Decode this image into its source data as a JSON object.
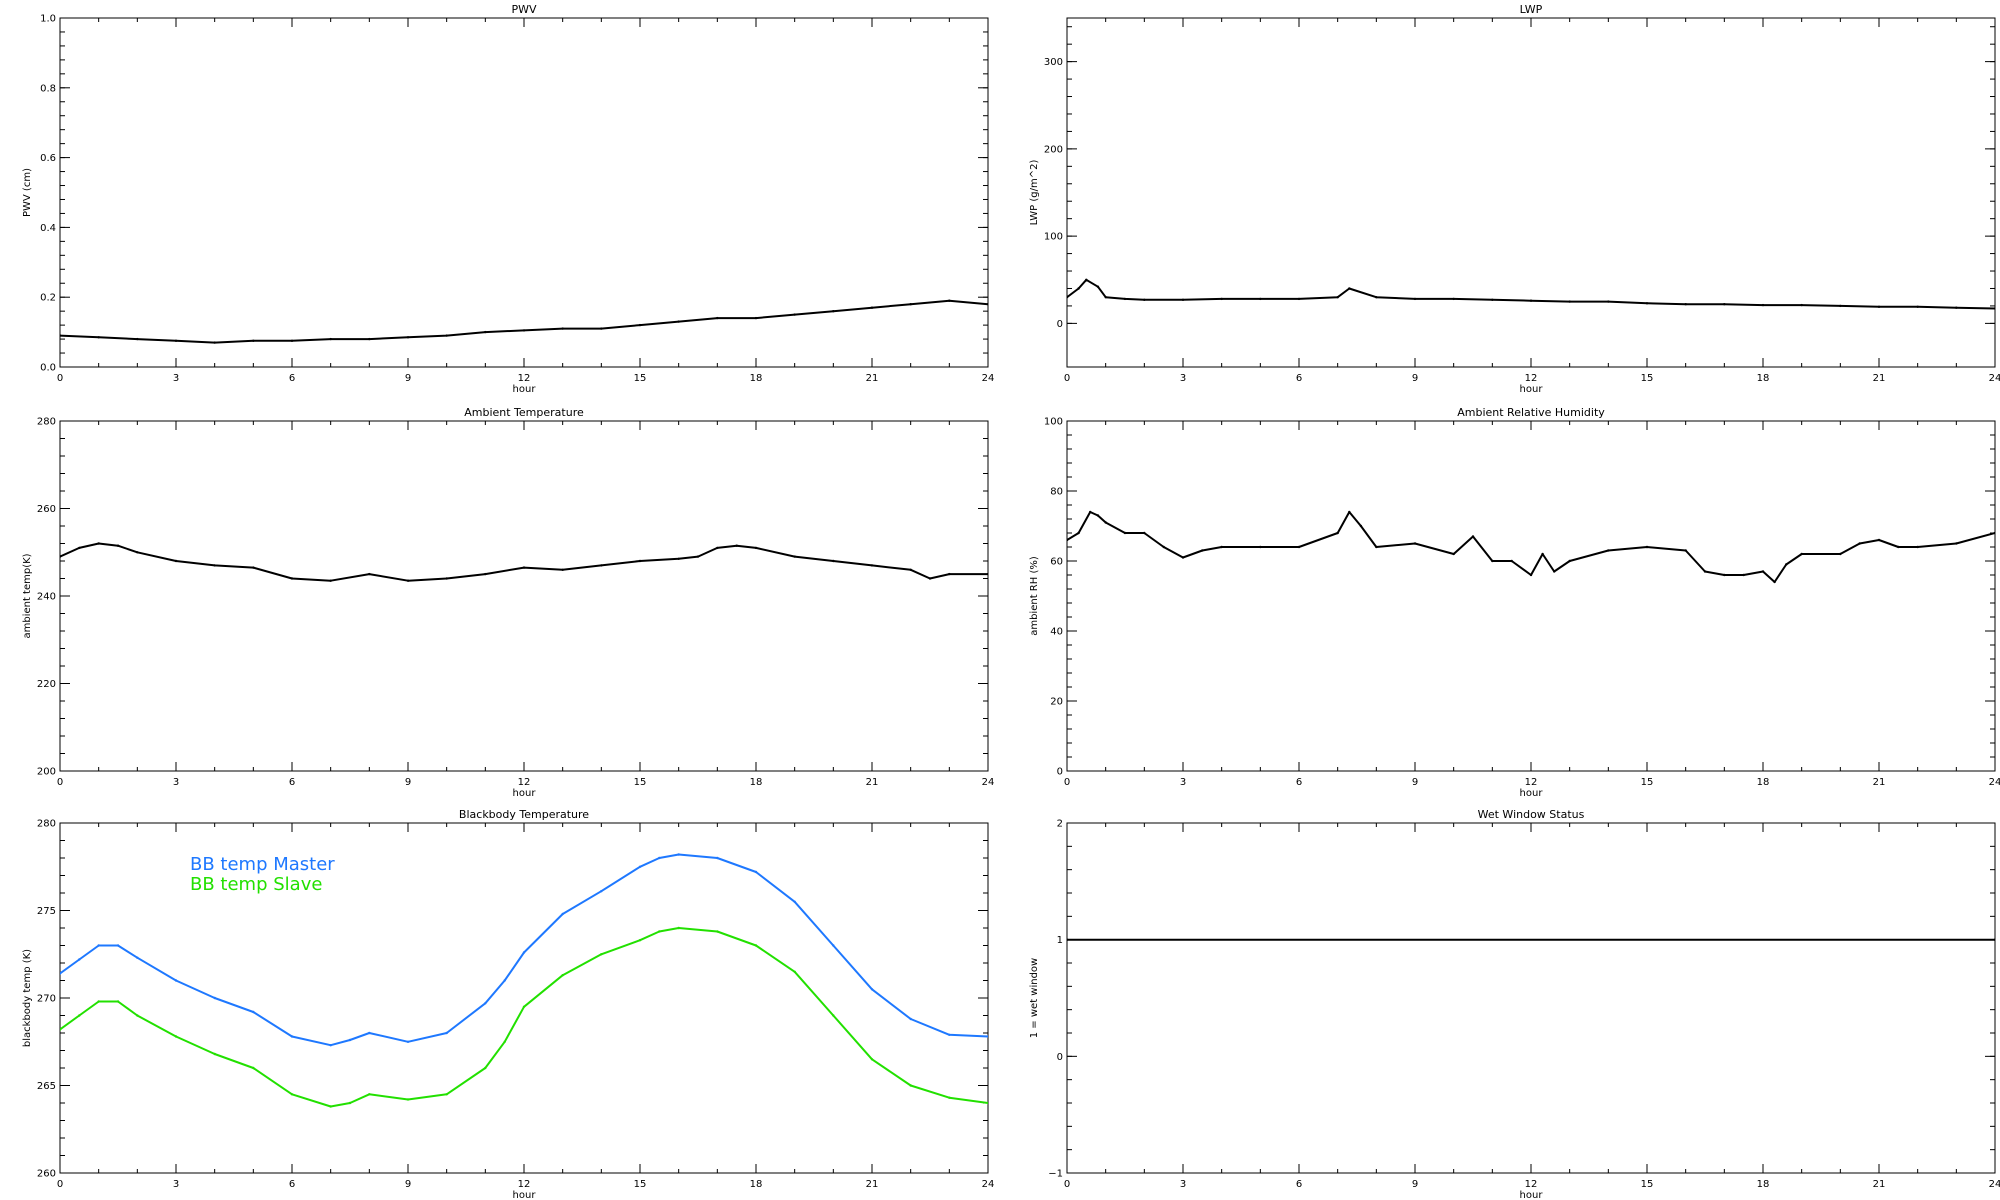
{
  "chart_data": [
    {
      "id": "pwv",
      "type": "line",
      "title": "PWV",
      "xlabel": "hour",
      "ylabel": "PWV (cm)",
      "xlim": [
        0,
        24
      ],
      "ylim": [
        0,
        1.0
      ],
      "xticks": [
        0,
        3,
        6,
        9,
        12,
        15,
        18,
        21,
        24
      ],
      "yticks": [
        0.0,
        0.2,
        0.4,
        0.6,
        0.8,
        1.0
      ],
      "ytick_labels": [
        "0.0",
        "0.2",
        "0.4",
        "0.6",
        "0.8",
        "1.0"
      ],
      "series": [
        {
          "color": "#000000",
          "x": [
            0,
            1,
            2,
            3,
            4,
            5,
            6,
            7,
            8,
            9,
            10,
            11,
            12,
            13,
            14,
            15,
            16,
            17,
            18,
            19,
            20,
            21,
            22,
            23,
            24
          ],
          "y": [
            0.09,
            0.085,
            0.08,
            0.075,
            0.07,
            0.075,
            0.075,
            0.08,
            0.08,
            0.085,
            0.09,
            0.1,
            0.105,
            0.11,
            0.11,
            0.12,
            0.13,
            0.14,
            0.14,
            0.15,
            0.16,
            0.17,
            0.18,
            0.19,
            0.18
          ]
        }
      ]
    },
    {
      "id": "lwp",
      "type": "line",
      "title": "LWP",
      "xlabel": "hour",
      "ylabel": "LWP (g/m^2)",
      "xlim": [
        0,
        24
      ],
      "ylim": [
        -50,
        350
      ],
      "xticks": [
        0,
        3,
        6,
        9,
        12,
        15,
        18,
        21,
        24
      ],
      "yticks": [
        0,
        100,
        200,
        300
      ],
      "ytick_labels": [
        "0",
        "100",
        "200",
        "300"
      ],
      "series": [
        {
          "color": "#000000",
          "x": [
            0,
            0.3,
            0.5,
            0.8,
            1,
            1.5,
            2,
            3,
            4,
            5,
            6,
            7,
            7.3,
            8,
            9,
            10,
            11,
            12,
            13,
            14,
            15,
            16,
            17,
            18,
            19,
            20,
            21,
            22,
            23,
            24
          ],
          "y": [
            30,
            40,
            50,
            42,
            30,
            28,
            27,
            27,
            28,
            28,
            28,
            30,
            40,
            30,
            28,
            28,
            27,
            26,
            25,
            25,
            23,
            22,
            22,
            21,
            21,
            20,
            19,
            19,
            18,
            17
          ]
        }
      ]
    },
    {
      "id": "amb-temp",
      "type": "line",
      "title": "Ambient Temperature",
      "xlabel": "hour",
      "ylabel": "ambient temp(K)",
      "xlim": [
        0,
        24
      ],
      "ylim": [
        200,
        280
      ],
      "xticks": [
        0,
        3,
        6,
        9,
        12,
        15,
        18,
        21,
        24
      ],
      "yticks": [
        200,
        220,
        240,
        260,
        280
      ],
      "ytick_labels": [
        "200",
        "220",
        "240",
        "260",
        "280"
      ],
      "series": [
        {
          "color": "#000000",
          "x": [
            0,
            0.5,
            1,
            1.5,
            2,
            3,
            4,
            5,
            6,
            7,
            8,
            9,
            10,
            11,
            12,
            13,
            14,
            15,
            16,
            16.5,
            17,
            17.5,
            18,
            19,
            20,
            21,
            22,
            22.5,
            23,
            24
          ],
          "y": [
            249,
            251,
            252,
            251.5,
            250,
            248,
            247,
            246.5,
            244,
            243.5,
            245,
            243.5,
            244,
            245,
            246.5,
            246,
            247,
            248,
            248.5,
            249,
            251,
            251.5,
            251,
            249,
            248,
            247,
            246,
            244,
            245,
            245
          ]
        }
      ]
    },
    {
      "id": "amb-rh",
      "type": "line",
      "title": "Ambient Relative Humidity",
      "xlabel": "hour",
      "ylabel": "ambient RH (%)",
      "xlim": [
        0,
        24
      ],
      "ylim": [
        0,
        100
      ],
      "xticks": [
        0,
        3,
        6,
        9,
        12,
        15,
        18,
        21,
        24
      ],
      "yticks": [
        0,
        20,
        40,
        60,
        80,
        100
      ],
      "ytick_labels": [
        "0",
        "20",
        "40",
        "60",
        "80",
        "100"
      ],
      "series": [
        {
          "color": "#000000",
          "x": [
            0,
            0.3,
            0.6,
            0.8,
            1,
            1.5,
            2,
            2.5,
            3,
            3.5,
            4,
            5,
            6,
            7,
            7.3,
            7.6,
            8,
            9,
            10,
            10.5,
            11,
            11.5,
            12,
            12.3,
            12.6,
            13,
            14,
            15,
            16,
            16.5,
            17,
            17.5,
            18,
            18.3,
            18.6,
            19,
            20,
            20.5,
            21,
            21.5,
            22,
            23,
            24
          ],
          "y": [
            66,
            68,
            74,
            73,
            71,
            68,
            68,
            64,
            61,
            63,
            64,
            64,
            64,
            68,
            74,
            70,
            64,
            65,
            62,
            67,
            60,
            60,
            56,
            62,
            57,
            60,
            63,
            64,
            63,
            57,
            56,
            56,
            57,
            54,
            59,
            62,
            62,
            65,
            66,
            64,
            64,
            65,
            68
          ]
        }
      ]
    },
    {
      "id": "bb-temp",
      "type": "line",
      "title": "Blackbody Temperature",
      "xlabel": "hour",
      "ylabel": "blackbody temp (K)",
      "xlim": [
        0,
        24
      ],
      "ylim": [
        260,
        280
      ],
      "xticks": [
        0,
        3,
        6,
        9,
        12,
        15,
        18,
        21,
        24
      ],
      "yticks": [
        260,
        265,
        270,
        275,
        280
      ],
      "ytick_labels": [
        "260",
        "265",
        "270",
        "275",
        "280"
      ],
      "legend": "top-left",
      "series": [
        {
          "name": "BB temp Master",
          "color": "#1e78ff",
          "x": [
            0,
            0.5,
            1,
            1.5,
            2,
            3,
            4,
            5,
            6,
            7,
            7.5,
            8,
            9,
            10,
            11,
            11.5,
            12,
            13,
            14,
            15,
            15.5,
            16,
            17,
            18,
            19,
            20,
            21,
            22,
            23,
            24
          ],
          "y": [
            271.4,
            272.2,
            273.0,
            273.0,
            272.3,
            271.0,
            270.0,
            269.2,
            267.8,
            267.3,
            267.6,
            268.0,
            267.5,
            268.0,
            269.7,
            271.0,
            272.6,
            274.8,
            276.1,
            277.5,
            278.0,
            278.2,
            278.0,
            277.2,
            275.5,
            273.0,
            270.5,
            268.8,
            267.9,
            267.8
          ]
        },
        {
          "name": "BB temp Slave",
          "color": "#22e000",
          "x": [
            0,
            0.5,
            1,
            1.5,
            2,
            3,
            4,
            5,
            6,
            7,
            7.5,
            8,
            9,
            10,
            11,
            11.5,
            12,
            13,
            14,
            15,
            15.5,
            16,
            17,
            18,
            19,
            20,
            21,
            22,
            23,
            24
          ],
          "y": [
            268.2,
            269.0,
            269.8,
            269.8,
            269.0,
            267.8,
            266.8,
            266.0,
            264.5,
            263.8,
            264.0,
            264.5,
            264.2,
            264.5,
            266.0,
            267.5,
            269.5,
            271.3,
            272.5,
            273.3,
            273.8,
            274.0,
            273.8,
            273.0,
            271.5,
            269.0,
            266.5,
            265.0,
            264.3,
            264.0
          ]
        }
      ]
    },
    {
      "id": "wet-window",
      "type": "line",
      "title": "Wet Window Status",
      "xlabel": "hour",
      "ylabel": "1 = wet window",
      "xlim": [
        0,
        24
      ],
      "ylim": [
        -1,
        2
      ],
      "xticks": [
        0,
        3,
        6,
        9,
        12,
        15,
        18,
        21,
        24
      ],
      "yticks": [
        -1,
        0,
        1,
        2
      ],
      "ytick_labels": [
        "−1",
        "0",
        "1",
        "2"
      ],
      "series": [
        {
          "color": "#000000",
          "x": [
            0,
            24
          ],
          "y": [
            1,
            1
          ]
        }
      ]
    }
  ]
}
